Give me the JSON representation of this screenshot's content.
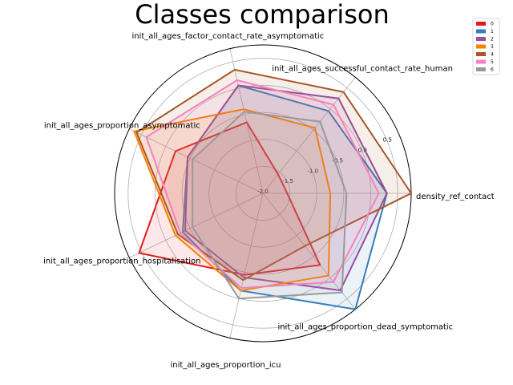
{
  "chart_data": {
    "type": "radar",
    "title": "Classes comparison",
    "axes": [
      "density_ref_contact",
      "init_all_ages_successful_contact_rate_human",
      "init_all_ages_factor_contact_rate_asymptomatic",
      "init_all_ages_proportion_asymptomatic",
      "init_all_ages_proportion_hospitalisation",
      "init_all_ages_proportion_icu",
      "init_all_ages_proportion_dead_symptomatic"
    ],
    "radial_ticks": [
      "-2.0",
      "-1.5",
      "-1.0",
      "-0.5",
      "0.0",
      "0.5"
    ],
    "rlim": [
      -2.0,
      0.75
    ],
    "grid": true,
    "legend_position": "top-right",
    "series": [
      {
        "name": "0",
        "color": "#e41a1c",
        "values": [
          -1.55,
          -1.55,
          -0.65,
          -0.2,
          0.55,
          -0.45,
          -0.3
        ]
      },
      {
        "name": "1",
        "color": "#377eb8",
        "values": [
          0.3,
          -0.05,
          0.05,
          -0.45,
          -0.35,
          -0.15,
          0.75
        ]
      },
      {
        "name": "2",
        "color": "#984ea3",
        "values": [
          0.3,
          0.25,
          0.05,
          -0.45,
          -0.4,
          -0.4,
          0.3
        ]
      },
      {
        "name": "3",
        "color": "#ff7f00",
        "values": [
          -0.75,
          -0.45,
          -0.4,
          0.65,
          -0.2,
          -0.15,
          -0.05
        ]
      },
      {
        "name": "4",
        "color": "#a65628",
        "values": [
          0.75,
          0.4,
          0.35,
          0.6,
          -0.25,
          -0.35,
          -0.75
        ]
      },
      {
        "name": "5",
        "color": "#f781bf",
        "values": [
          0.15,
          0.1,
          0.15,
          0.4,
          -0.3,
          -0.2,
          0.1
        ]
      },
      {
        "name": "6",
        "color": "#999999",
        "values": [
          -0.45,
          -0.3,
          -0.45,
          -0.55,
          -0.55,
          0.0,
          0.35
        ]
      }
    ]
  }
}
